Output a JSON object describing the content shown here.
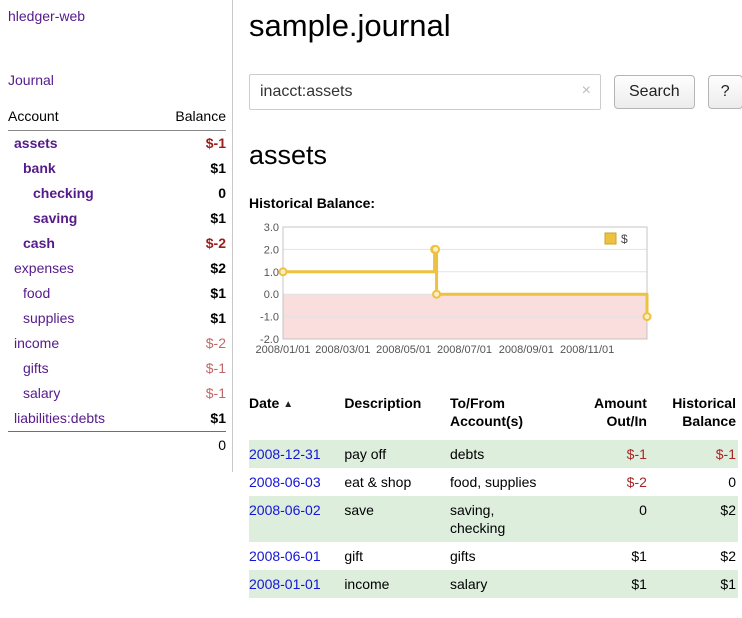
{
  "app_title": "hledger-web",
  "sidebar": {
    "journal_link": "Journal",
    "account_header": "Account",
    "balance_header": "Balance",
    "accounts": [
      {
        "name": "assets",
        "balance": "$-1"
      },
      {
        "name": "bank",
        "balance": "$1"
      },
      {
        "name": "checking",
        "balance": "0"
      },
      {
        "name": "saving",
        "balance": "$1"
      },
      {
        "name": "cash",
        "balance": "$-2"
      },
      {
        "name": "expenses",
        "balance": "$2"
      },
      {
        "name": "food",
        "balance": "$1"
      },
      {
        "name": "supplies",
        "balance": "$1"
      },
      {
        "name": "income",
        "balance": "$-2"
      },
      {
        "name": "gifts",
        "balance": "$-1"
      },
      {
        "name": "salary",
        "balance": "$-1"
      },
      {
        "name": "liabilities:debts",
        "balance": "$1"
      }
    ],
    "total": "0"
  },
  "header": {
    "title": "sample.journal"
  },
  "search": {
    "value": "inacct:assets",
    "clear_icon": "×",
    "button_label": "Search",
    "help_label": "?"
  },
  "account_page": {
    "heading": "assets",
    "chart_title": "Historical Balance:"
  },
  "chart_data": {
    "type": "line",
    "style": "step",
    "title": "Historical Balance",
    "legend": "$",
    "legend_position": "top-right",
    "grid": true,
    "x_range": [
      "2008/01/01",
      "2008/12/31"
    ],
    "y_range": [
      -2.0,
      3.0
    ],
    "y_ticks": [
      3.0,
      2.0,
      1.0,
      0.0,
      -1.0,
      -2.0
    ],
    "x_ticks": [
      "2008/01/01",
      "2008/03/01",
      "2008/05/01",
      "2008/07/01",
      "2008/09/01",
      "2008/11/01"
    ],
    "points": [
      {
        "date": "2008/01/01",
        "balance": 1
      },
      {
        "date": "2008/06/01",
        "balance": 2
      },
      {
        "date": "2008/06/02",
        "balance": 2
      },
      {
        "date": "2008/06/03",
        "balance": 0
      },
      {
        "date": "2008/12/31",
        "balance": -1
      }
    ],
    "colors": {
      "line": "#edc240",
      "marker_fill": "#f9eec7",
      "negative_band": "#fadddd",
      "grid": "#e3e3e3",
      "border": "#c4c4c4",
      "tick_text": "#545454"
    }
  },
  "register": {
    "headers": {
      "date": "Date",
      "sort_icon": "▲",
      "description": "Description",
      "account": "To/From Account(s)",
      "amount": "Amount Out/In",
      "balance": "Historical Balance"
    },
    "rows": [
      {
        "date": "2008-12-31",
        "description": "pay off",
        "accounts": "debts",
        "amount": "$-1",
        "balance": "$-1"
      },
      {
        "date": "2008-06-03",
        "description": "eat & shop",
        "accounts": "food, supplies",
        "amount": "$-2",
        "balance": "0"
      },
      {
        "date": "2008-06-02",
        "description": "save",
        "accounts": "saving,\nchecking",
        "amount": "0",
        "balance": "$2"
      },
      {
        "date": "2008-06-01",
        "description": "gift",
        "accounts": "gifts",
        "amount": "$1",
        "balance": "$2"
      },
      {
        "date": "2008-01-01",
        "description": "income",
        "accounts": "salary",
        "amount": "$1",
        "balance": "$1"
      }
    ]
  }
}
